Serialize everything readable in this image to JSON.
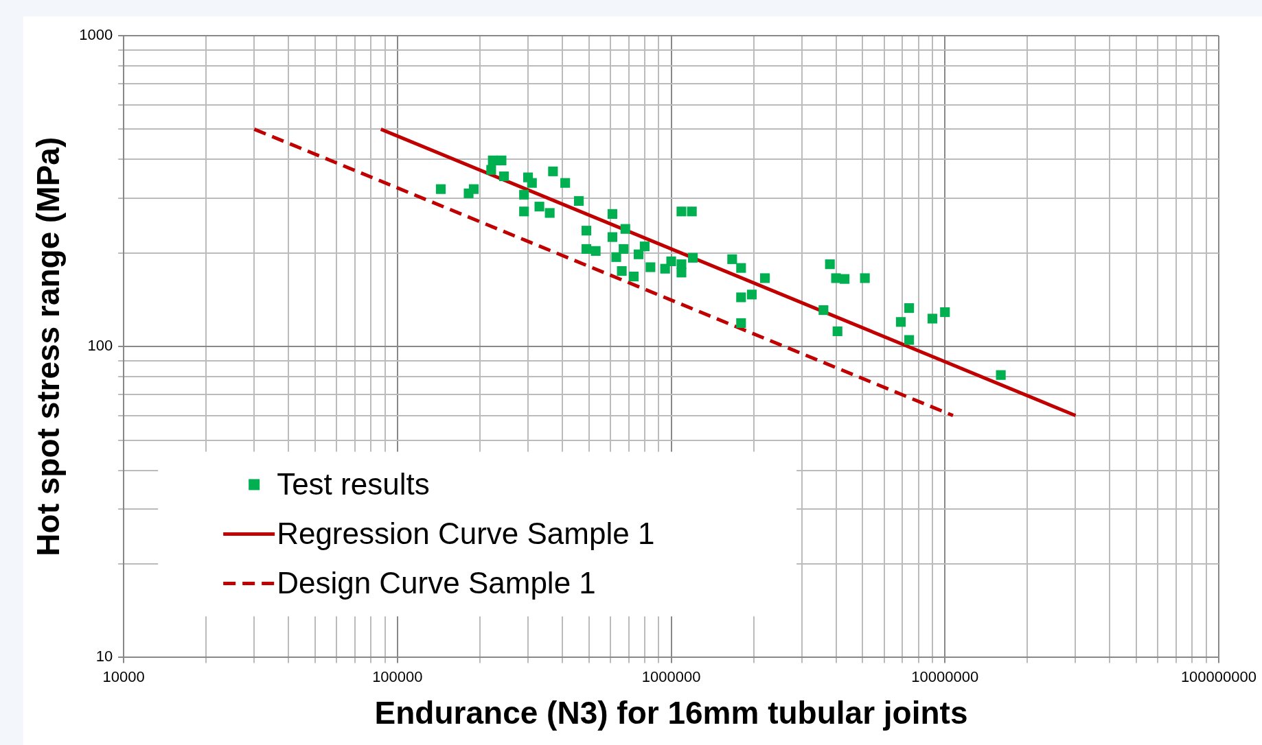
{
  "chart_data": {
    "type": "scatter",
    "xlabel": "Endurance (N3) for 16mm tubular joints",
    "ylabel": "Hot spot stress range (MPa)",
    "log": "xy",
    "grid": true,
    "legend": "bottom left",
    "xlim": [
      10000,
      100000000
    ],
    "ylim": [
      10,
      1000
    ],
    "xticks": [
      10000,
      {
        "value": 20000,
        "label": null
      },
      {
        "value": 30000,
        "label": null
      },
      {
        "value": 40000,
        "label": null
      },
      {
        "value": 50000,
        "label": null
      },
      {
        "value": 60000,
        "label": null
      },
      {
        "value": 70000,
        "label": null
      },
      {
        "value": 80000,
        "label": null
      },
      {
        "value": 90000,
        "label": null
      },
      100000,
      {
        "value": 200000,
        "label": null
      },
      {
        "value": 300000,
        "label": null
      },
      {
        "value": 400000,
        "label": null
      },
      {
        "value": 500000,
        "label": null
      },
      {
        "value": 600000,
        "label": null
      },
      {
        "value": 700000,
        "label": null
      },
      {
        "value": 800000,
        "label": null
      },
      {
        "value": 900000,
        "label": null
      },
      1000000,
      {
        "value": 2000000,
        "label": null
      },
      {
        "value": 3000000,
        "label": null
      },
      {
        "value": 4000000,
        "label": null
      },
      {
        "value": 5000000,
        "label": null
      },
      {
        "value": 6000000,
        "label": null
      },
      {
        "value": 7000000,
        "label": null
      },
      {
        "value": 8000000,
        "label": null
      },
      {
        "value": 9000000,
        "label": null
      },
      10000000,
      {
        "value": 20000000,
        "label": null
      },
      {
        "value": 30000000,
        "label": null
      },
      {
        "value": 40000000,
        "label": null
      },
      {
        "value": 50000000,
        "label": null
      },
      {
        "value": 60000000,
        "label": null
      },
      {
        "value": 70000000,
        "label": null
      },
      {
        "value": 80000000,
        "label": null
      },
      {
        "value": 90000000,
        "label": null
      },
      100000000
    ],
    "yticks": [
      10,
      {
        "value": 20,
        "label": null
      },
      {
        "value": 30,
        "label": null
      },
      {
        "value": 40,
        "label": null
      },
      {
        "value": 50,
        "label": null
      },
      {
        "value": 60,
        "label": null
      },
      {
        "value": 70,
        "label": null
      },
      {
        "value": 80,
        "label": null
      },
      {
        "value": 90,
        "label": null
      },
      100,
      {
        "value": 200,
        "label": null
      },
      {
        "value": 300,
        "label": null
      },
      {
        "value": 400,
        "label": null
      },
      {
        "value": 500,
        "label": null
      },
      {
        "value": 600,
        "label": null
      },
      {
        "value": 700,
        "label": null
      },
      {
        "value": 800,
        "label": null
      },
      {
        "value": 900,
        "label": null
      },
      1000
    ],
    "series": [
      {
        "name": "Test results",
        "marker": "square",
        "color": "#00b050",
        "x": [
          144000,
          182000,
          190000,
          220000,
          223000,
          240000,
          245000,
          290000,
          290000,
          300000,
          310000,
          330000,
          360000,
          370000,
          410000,
          460000,
          490000,
          490000,
          530000,
          610000,
          610000,
          630000,
          660000,
          670000,
          680000,
          730000,
          760000,
          800000,
          840000,
          950000,
          1000000,
          1090000,
          1090000,
          1190000,
          1200000,
          1090000,
          1670000,
          1800000,
          1800000,
          1800000,
          1970000,
          2200000,
          3600000,
          3800000,
          4000000,
          4050000,
          4300000,
          5100000,
          6900000,
          7400000,
          7400000,
          9000000,
          10000000,
          16000000
        ],
        "values": [
          321,
          311,
          321,
          370,
          397,
          397,
          353,
          308,
          272,
          350,
          336,
          282,
          269,
          366,
          336,
          294,
          236,
          206,
          203,
          267,
          225,
          194,
          175,
          206,
          239,
          168,
          198,
          210,
          180,
          178,
          188,
          173,
          272,
          272,
          193,
          184,
          191,
          179,
          144,
          119,
          147,
          166,
          131,
          184,
          166,
          112,
          165,
          166,
          120,
          133,
          105,
          123,
          129,
          81
        ]
      },
      {
        "name": "Regression Curve Sample 1",
        "type": "line",
        "line_style": "solid",
        "marker": "none",
        "color": "#c00000",
        "x": [
          87000,
          30000000
        ],
        "values": [
          500,
          60
        ]
      },
      {
        "name": "Design Curve Sample 1",
        "type": "line",
        "line_style": "dashed",
        "marker": "none",
        "color": "#c00000",
        "x": [
          30000,
          10700000
        ],
        "values": [
          500,
          60
        ]
      }
    ]
  }
}
